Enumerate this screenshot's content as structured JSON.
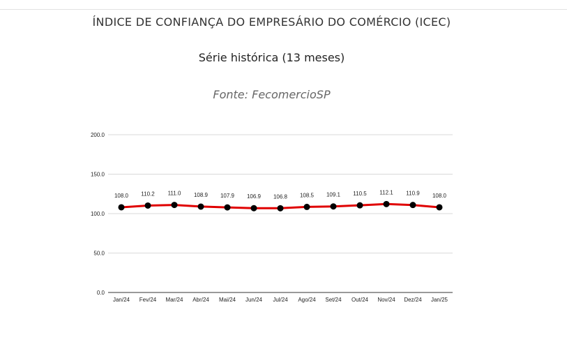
{
  "header": {
    "title": "ÍNDICE DE CONFIANÇA DO EMPRESÁRIO DO COMÉRCIO (ICEC)",
    "subtitle": "Série histórica (13 meses)",
    "source": "Fonte: FecomercioSP"
  },
  "chart_data": {
    "type": "line",
    "title": "ÍNDICE DE CONFIANÇA DO EMPRESÁRIO DO COMÉRCIO (ICEC)",
    "subtitle": "Série histórica (13 meses)",
    "xlabel": "",
    "ylabel": "",
    "categories": [
      "Jan/24",
      "Fev/24",
      "Mar/24",
      "Abr/24",
      "Mai/24",
      "Jun/24",
      "Jul/24",
      "Ago/24",
      "Set/24",
      "Out/24",
      "Nov/24",
      "Dez/24",
      "Jan/25"
    ],
    "series": [
      {
        "values": [
          108.0,
          110.2,
          111.0,
          108.9,
          107.9,
          106.9,
          106.8,
          108.5,
          109.1,
          110.5,
          112.1,
          110.9,
          108.0
        ],
        "labels": [
          "108.0",
          "110.2",
          "111.0",
          "108.9",
          "107.9",
          "106.9",
          "106.8",
          "108.5",
          "109.1",
          "110.5",
          "112.1",
          "110.9",
          "108.0"
        ],
        "color": "#e00000",
        "marker_color": "#000000"
      }
    ],
    "ylim": [
      0,
      200
    ],
    "yticks": [
      "0.0",
      "50.0",
      "100.0",
      "150.0",
      "200.0"
    ],
    "grid": true,
    "legend": "none"
  }
}
